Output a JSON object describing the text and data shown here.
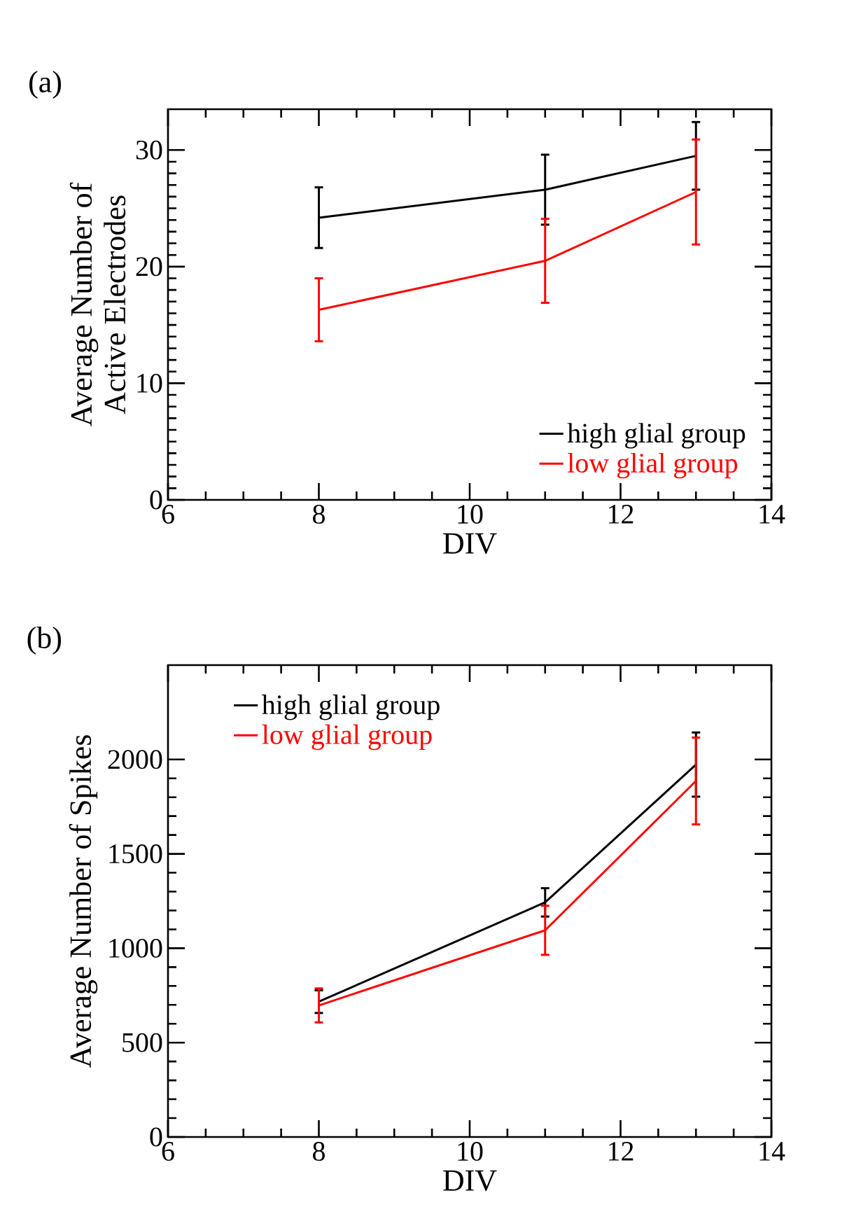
{
  "chart_data": [
    {
      "type": "line",
      "title": "(a)",
      "xlabel": "DIV",
      "ylabel": "Average Number of\nActive Electrodes",
      "x": [
        8,
        11,
        13
      ],
      "xlim": [
        6,
        14
      ],
      "xticks": [
        6,
        8,
        10,
        12,
        14
      ],
      "ylim": [
        0,
        33.5
      ],
      "yticks": [
        0,
        10,
        20,
        30
      ],
      "legend": "bottom right",
      "grid": false,
      "series": [
        {
          "name": "high glial group",
          "color": "#000000",
          "values": [
            24.2,
            26.6,
            29.5
          ],
          "errors": [
            2.6,
            3.0,
            2.9
          ]
        },
        {
          "name": "low glial group",
          "color": "#ff0000",
          "values": [
            16.3,
            20.5,
            26.4
          ],
          "errors": [
            2.7,
            3.6,
            4.5
          ]
        }
      ]
    },
    {
      "type": "line",
      "title": "(b)",
      "xlabel": "DIV",
      "ylabel": "Average Number of Spikes",
      "x": [
        8,
        11,
        13
      ],
      "xlim": [
        6,
        14
      ],
      "xticks": [
        6,
        8,
        10,
        12,
        14
      ],
      "ylim": [
        0,
        2500
      ],
      "yticks": [
        0,
        500,
        1000,
        1500,
        2000
      ],
      "legend": "top left",
      "grid": false,
      "series": [
        {
          "name": "high glial group",
          "color": "#000000",
          "values": [
            717,
            1243,
            1973
          ],
          "errors": [
            60,
            75,
            170
          ]
        },
        {
          "name": "low glial group",
          "color": "#ff0000",
          "values": [
            697,
            1095,
            1886
          ],
          "errors": [
            90,
            130,
            230
          ]
        }
      ]
    }
  ]
}
